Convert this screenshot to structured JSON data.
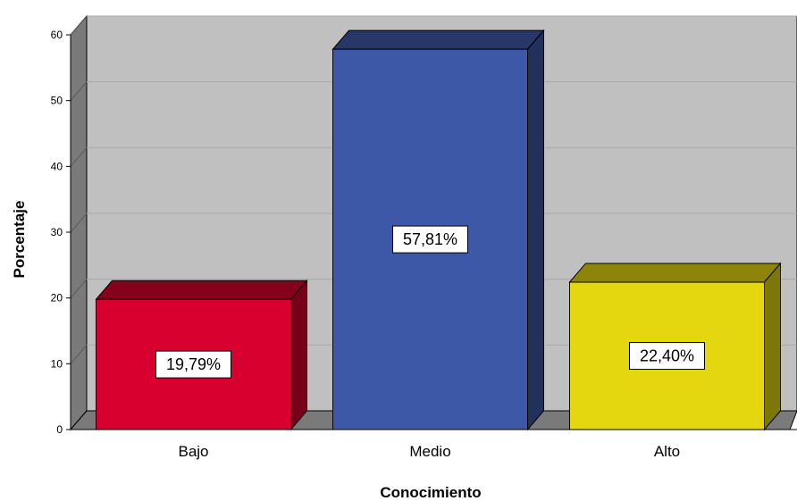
{
  "chart_data": {
    "type": "bar",
    "categories": [
      "Bajo",
      "Medio",
      "Alto"
    ],
    "values": [
      19.79,
      57.81,
      22.4
    ],
    "data_labels": [
      "19,79%",
      "57,81%",
      "22,40%"
    ],
    "colors": [
      "#d7002e",
      "#3e58a8",
      "#e4d70f"
    ],
    "xlabel": "Conocimiento",
    "ylabel": "Porcentaje",
    "ylim": [
      0,
      60
    ],
    "yticks": [
      0,
      10,
      20,
      30,
      40,
      50,
      60
    ],
    "grid": true,
    "style": "3d"
  }
}
